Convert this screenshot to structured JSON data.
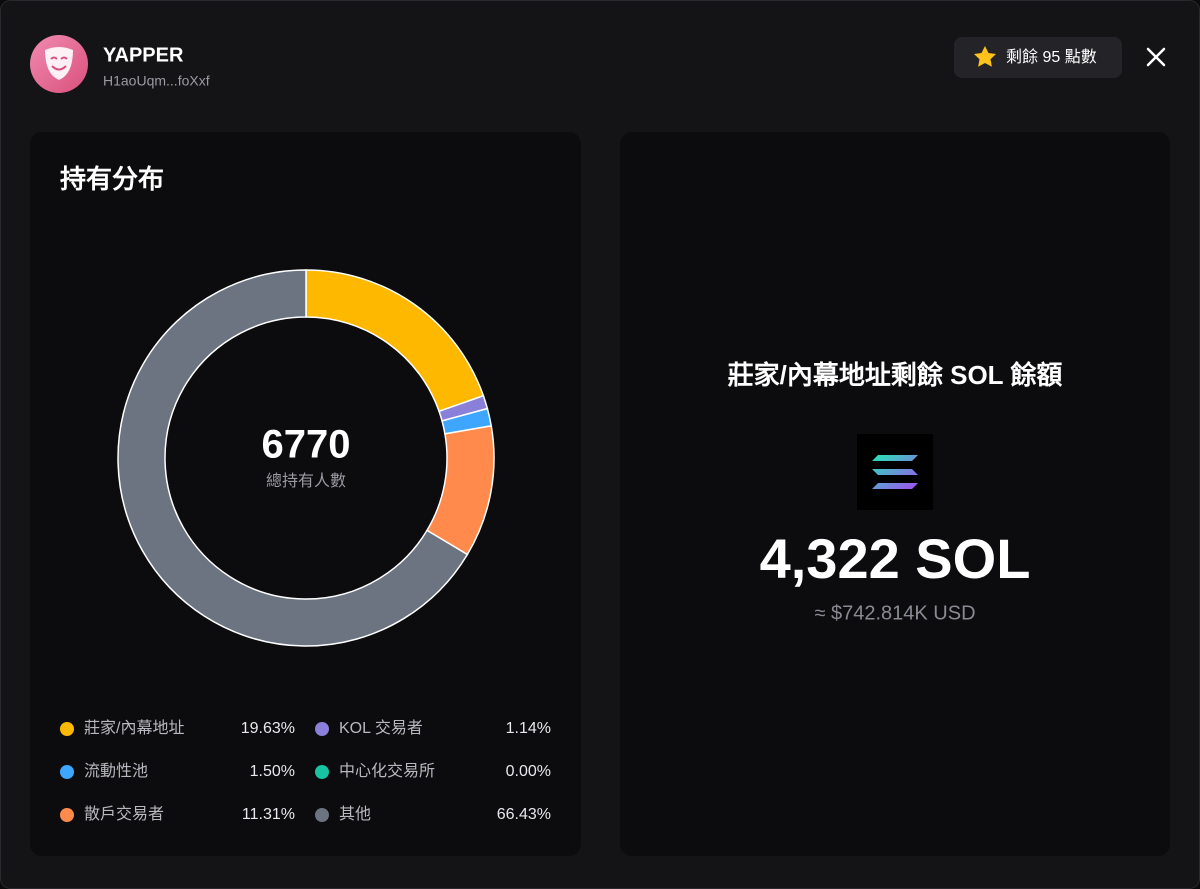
{
  "header": {
    "title": "YAPPER",
    "address": "H1aoUqm...foXxf",
    "points": "剩餘 95 點數"
  },
  "chart_data": {
    "type": "pie",
    "title": "持有分布",
    "categories": [
      "莊家/內幕地址",
      "KOL 交易者",
      "流動性池",
      "中心化交易所",
      "散戶交易者",
      "其他"
    ],
    "values": [
      19.63,
      1.14,
      1.5,
      0,
      11.31,
      66.43
    ],
    "value_labels": [
      "19.63%",
      "1.14%",
      "1.50%",
      "0.00%",
      "11.31%",
      "66.43%"
    ],
    "colors": [
      "#ffb800",
      "#8b80d9",
      "#3ea6ff",
      "#17c3a0",
      "#ff8a4c",
      "#6b7480"
    ],
    "total": 6770,
    "total_label": "總持有人數"
  },
  "balance": {
    "title": "莊家/內幕地址剩餘 SOL 餘額",
    "amount": "4,322 SOL",
    "usd": "≈ $742.814K USD"
  }
}
